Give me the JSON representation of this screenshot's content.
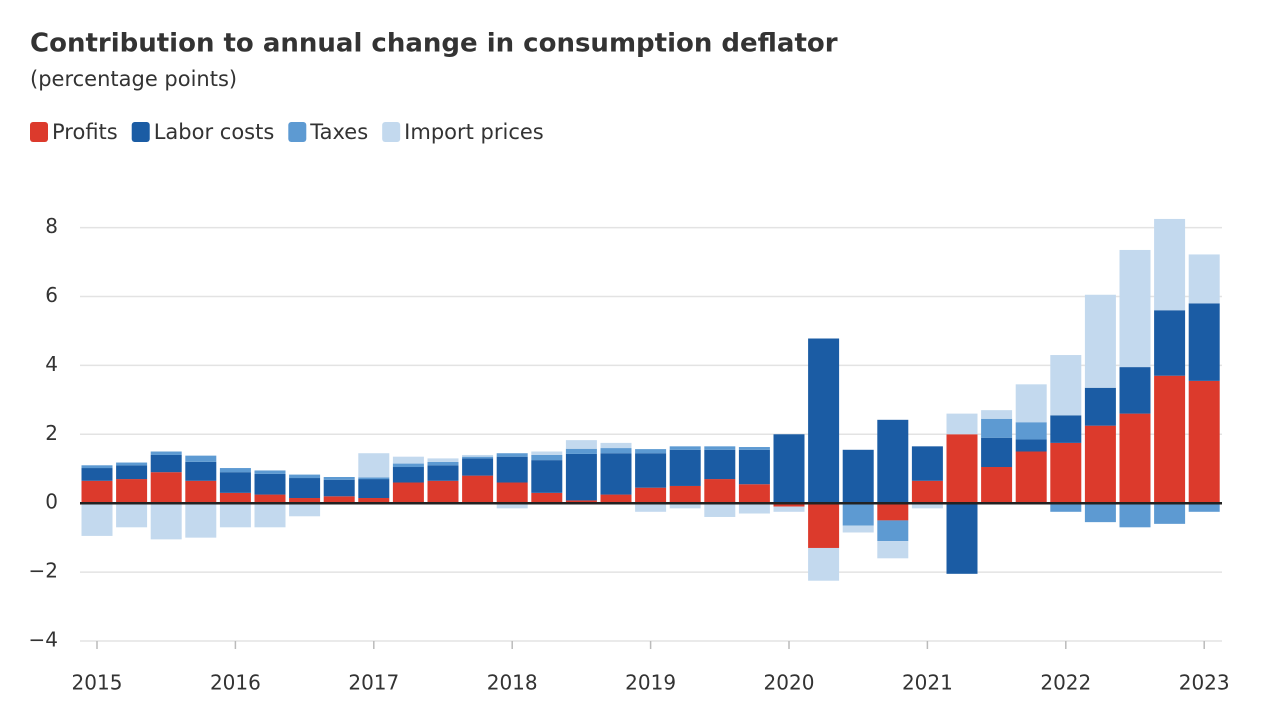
{
  "chart_data": {
    "type": "stacked-bar",
    "title": "Contribution to annual change in consumption deflator",
    "subtitle": "(percentage points)",
    "categories": [
      "2015",
      null,
      null,
      null,
      "2016",
      null,
      null,
      null,
      "2017",
      null,
      null,
      null,
      "2018",
      null,
      null,
      null,
      "2019",
      null,
      null,
      null,
      "2020",
      null,
      null,
      null,
      "2021",
      null,
      null,
      null,
      "2022",
      null,
      null,
      null,
      "2023"
    ],
    "series": [
      {
        "name": "Profits",
        "color": "#dc3a2c",
        "values": [
          0.65,
          0.7,
          0.9,
          0.65,
          0.3,
          0.25,
          0.15,
          0.2,
          0.15,
          0.6,
          0.65,
          0.8,
          0.6,
          0.3,
          0.08,
          0.25,
          0.45,
          0.5,
          0.7,
          0.55,
          -0.1,
          -1.3,
          0,
          -0.5,
          0.65,
          2.0,
          1.05,
          1.5,
          1.75,
          2.25,
          2.6,
          3.7,
          3.55
        ]
      },
      {
        "name": "Labor costs",
        "color": "#1b5ca4",
        "values": [
          0.37,
          0.4,
          0.5,
          0.55,
          0.6,
          0.6,
          0.58,
          0.48,
          0.55,
          0.45,
          0.45,
          0.5,
          0.75,
          0.95,
          1.35,
          1.2,
          1.0,
          1.05,
          0.85,
          1.0,
          2.0,
          4.78,
          1.55,
          2.42,
          1.0,
          -2.05,
          0.85,
          0.35,
          0.8,
          1.1,
          1.35,
          1.9,
          2.25
        ]
      },
      {
        "name": "Taxes",
        "color": "#5d9ad2",
        "values": [
          0.08,
          0.08,
          0.1,
          0.18,
          0.12,
          0.1,
          0.1,
          0.08,
          0.05,
          0.1,
          0.1,
          0.05,
          0.1,
          0.15,
          0.15,
          0.15,
          0.12,
          0.1,
          0.1,
          0.08,
          0,
          0,
          -0.65,
          -0.6,
          0,
          0,
          0.55,
          0.5,
          -0.25,
          -0.55,
          -0.7,
          -0.6,
          -0.25
        ]
      },
      {
        "name": "Import prices",
        "color": "#c3d9ee",
        "values": [
          -0.95,
          -0.7,
          -1.05,
          -1.0,
          -0.7,
          -0.7,
          -0.38,
          0,
          0.7,
          0.2,
          0.1,
          0.05,
          -0.15,
          0.1,
          0.25,
          0.15,
          -0.25,
          -0.15,
          -0.4,
          -0.3,
          -0.15,
          -0.95,
          -0.2,
          -0.5,
          -0.15,
          0.6,
          0.25,
          1.1,
          1.75,
          2.7,
          3.4,
          2.65,
          1.42
        ]
      }
    ],
    "ylim": [
      -4,
      8.8
    ],
    "yticks": [
      {
        "value": -4,
        "label": "−4"
      },
      {
        "value": -2,
        "label": "−2"
      },
      0,
      2,
      4,
      6,
      8
    ],
    "grid": true
  }
}
